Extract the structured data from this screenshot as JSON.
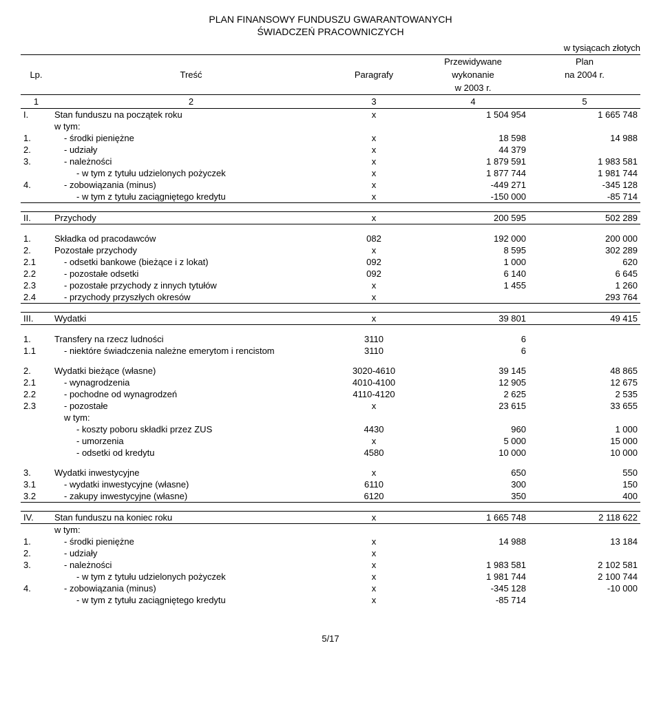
{
  "title_line1": "PLAN FINANSOWY FUNDUSZU GWARANTOWANYCH",
  "title_line2": "ŚWIADCZEŃ PRACOWNICZYCH",
  "unit": "w tysiącach złotych",
  "header": {
    "lp": "Lp.",
    "tresc": "Treść",
    "paragrafy": "Paragrafy",
    "col4_a": "Przewidywane",
    "col4_b": "wykonanie",
    "col4_c": "w 2003 r.",
    "col5_a": "Plan",
    "col5_b": "na 2004 r.",
    "n1": "1",
    "n2": "2",
    "n3": "3",
    "n4": "4",
    "n5": "5"
  },
  "rows": {
    "I": {
      "lp": "I.",
      "tresc": "Stan funduszu na początek roku",
      "par": "x",
      "c4": "1 504 954",
      "c5": "1 665 748"
    },
    "I_w": {
      "tresc": "w tym:"
    },
    "I1": {
      "lp": "1.",
      "tresc": "- środki pieniężne",
      "par": "x",
      "c4": "18 598",
      "c5": "14 988"
    },
    "I2": {
      "lp": "2.",
      "tresc": "- udziały",
      "par": "x",
      "c4": "44 379",
      "c5": ""
    },
    "I3": {
      "lp": "3.",
      "tresc": "- należności",
      "par": "x",
      "c4": "1 879 591",
      "c5": "1 983 581"
    },
    "I3a": {
      "tresc": "- w tym z tytułu udzielonych pożyczek",
      "par": "x",
      "c4": "1 877 744",
      "c5": "1 981 744"
    },
    "I4": {
      "lp": "4.",
      "tresc": "- zobowiązania (minus)",
      "par": "x",
      "c4": "-449 271",
      "c5": "-345 128"
    },
    "I4a": {
      "tresc": "- w tym z tytułu zaciągniętego kredytu",
      "par": "x",
      "c4": "-150 000",
      "c5": "-85 714"
    },
    "II": {
      "lp": "II.",
      "tresc": "Przychody",
      "par": "x",
      "c4": "200 595",
      "c5": "502 289"
    },
    "II1": {
      "lp": "1.",
      "tresc": "Składka od pracodawców",
      "par": "082",
      "c4": "192 000",
      "c5": "200 000"
    },
    "II2": {
      "lp": "2.",
      "tresc": "Pozostałe przychody",
      "par": "x",
      "c4": "8 595",
      "c5": "302 289"
    },
    "II21": {
      "lp": "2.1",
      "tresc": "- odsetki bankowe (bieżące i z lokat)",
      "par": "092",
      "c4": "1 000",
      "c5": "620"
    },
    "II22": {
      "lp": "2.2",
      "tresc": "- pozostałe odsetki",
      "par": "092",
      "c4": "6 140",
      "c5": "6 645"
    },
    "II23": {
      "lp": "2.3",
      "tresc": "- pozostałe przychody z innych tytułów",
      "par": "x",
      "c4": "1 455",
      "c5": "1 260"
    },
    "II24": {
      "lp": "2.4",
      "tresc": "- przychody przyszłych okresów",
      "par": "x",
      "c4": "",
      "c5": "293 764"
    },
    "III": {
      "lp": "III.",
      "tresc": "Wydatki",
      "par": "x",
      "c4": "39 801",
      "c5": "49 415"
    },
    "III1": {
      "lp": "1.",
      "tresc": "Transfery na rzecz ludności",
      "par": "3110",
      "c4": "6",
      "c5": ""
    },
    "III11": {
      "lp": "1.1",
      "tresc": "- niektóre świadczenia należne emerytom i rencistom",
      "par": "3110",
      "c4": "6",
      "c5": ""
    },
    "III2": {
      "lp": "2.",
      "tresc": "Wydatki bieżące (własne)",
      "par": "3020-4610",
      "c4": "39 145",
      "c5": "48 865"
    },
    "III21": {
      "lp": "2.1",
      "tresc": "- wynagrodzenia",
      "par": "4010-4100",
      "c4": "12 905",
      "c5": "12 675"
    },
    "III22": {
      "lp": "2.2",
      "tresc": "- pochodne od wynagrodzeń",
      "par": "4110-4120",
      "c4": "2 625",
      "c5": "2 535"
    },
    "III23": {
      "lp": "2.3",
      "tresc": "- pozostałe",
      "par": "x",
      "c4": "23 615",
      "c5": "33 655"
    },
    "III23w": {
      "tresc": "w tym:"
    },
    "III23a": {
      "tresc": "- koszty poboru składki przez ZUS",
      "par": "4430",
      "c4": "960",
      "c5": "1 000"
    },
    "III23b": {
      "tresc": "- umorzenia",
      "par": "x",
      "c4": "5 000",
      "c5": "15 000"
    },
    "III23c": {
      "tresc": "- odsetki od kredytu",
      "par": "4580",
      "c4": "10 000",
      "c5": "10 000"
    },
    "III3": {
      "lp": "3.",
      "tresc": "Wydatki inwestycyjne",
      "par": "x",
      "c4": "650",
      "c5": "550"
    },
    "III31": {
      "lp": "3.1",
      "tresc": "- wydatki inwestycyjne (własne)",
      "par": "6110",
      "c4": "300",
      "c5": "150"
    },
    "III32": {
      "lp": "3.2",
      "tresc": "- zakupy inwestycyjne (własne)",
      "par": "6120",
      "c4": "350",
      "c5": "400"
    },
    "IV": {
      "lp": "IV.",
      "tresc": "Stan funduszu na koniec roku",
      "par": "x",
      "c4": "1 665 748",
      "c5": "2 118 622"
    },
    "IV_w": {
      "tresc": "w tym:"
    },
    "IV1": {
      "lp": "1.",
      "tresc": "- środki pieniężne",
      "par": "x",
      "c4": "14 988",
      "c5": "13 184"
    },
    "IV2": {
      "lp": "2.",
      "tresc": "- udziały",
      "par": "x",
      "c4": "",
      "c5": ""
    },
    "IV3": {
      "lp": "3.",
      "tresc": "- należności",
      "par": "x",
      "c4": "1 983 581",
      "c5": "2 102 581"
    },
    "IV3a": {
      "tresc": "- w tym z tytułu udzielonych pożyczek",
      "par": "x",
      "c4": "1 981 744",
      "c5": "2 100 744"
    },
    "IV4": {
      "lp": "4.",
      "tresc": "- zobowiązania (minus)",
      "par": "x",
      "c4": "-345 128",
      "c5": "-10 000"
    },
    "IV4a": {
      "tresc": "- w tym z tytułu zaciągniętego kredytu",
      "par": "x",
      "c4": "-85 714",
      "c5": ""
    }
  },
  "footer": "5/17"
}
